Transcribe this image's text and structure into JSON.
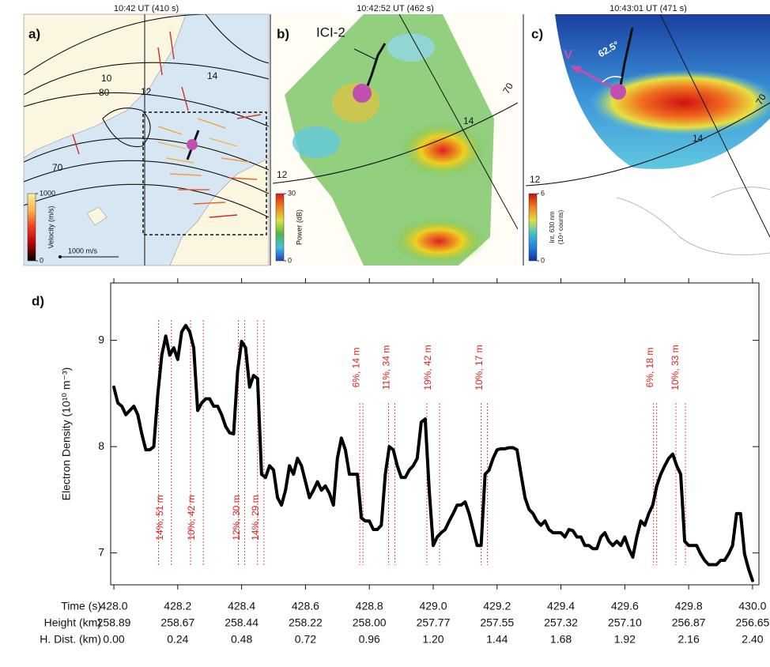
{
  "chart_data": [
    {
      "type": "map",
      "label": "a)",
      "title": "10:42 UT (410 s)",
      "contour_labels": [
        "10",
        "12",
        "14",
        "80",
        "70"
      ],
      "scale_label": "1000 m/s",
      "colorbar": {
        "label": "Velocity (m/s)",
        "clim": [
          0,
          1000
        ],
        "ticks": [
          0,
          1000
        ],
        "colors": [
          "#000000",
          "#b30000",
          "#f03b20",
          "#feb24c",
          "#ffeda0"
        ]
      }
    },
    {
      "type": "map",
      "label": "b)",
      "title": "10:42:52 UT (462 s)",
      "trajectory_label": "ICI-2",
      "contour_labels": [
        "12",
        "14",
        "70"
      ],
      "colorbar": {
        "label": "Power (dB)",
        "clim": [
          0,
          30
        ],
        "ticks": [
          0,
          30
        ],
        "colors": [
          "#2040c0",
          "#40c0e0",
          "#50b848",
          "#e0e040",
          "#f08020",
          "#d02020"
        ]
      }
    },
    {
      "type": "map",
      "label": "c)",
      "title": "10:43:01 UT (471 s)",
      "velocity_label": "V",
      "angle_label": "62.5°",
      "contour_labels": [
        "12",
        "14",
        "70"
      ],
      "colorbar": {
        "label": [
          "Int. 630 nm",
          "(10⁴ counts)"
        ],
        "clim": [
          0,
          6
        ],
        "ticks": [
          0,
          6
        ],
        "colors": [
          "#1030a0",
          "#2080e0",
          "#40c0d0",
          "#e0e040",
          "#f08020",
          "#c01010"
        ]
      }
    },
    {
      "type": "line",
      "label": "d)",
      "ylabel": "Electron Density (10¹⁰ m⁻³)",
      "xlabel": "Time (s)",
      "xlim": [
        427.99,
        430.02
      ],
      "ylim": [
        6.7,
        9.54
      ],
      "xticks": [
        {
          "value": 428,
          "label": "428.0"
        },
        428.2,
        428.4,
        428.6,
        428.8,
        {
          "value": 429,
          "label": "429.0"
        },
        429.2,
        429.4,
        429.6,
        429.8,
        {
          "value": 430,
          "label": "430.0"
        }
      ],
      "yticks": [
        7,
        8,
        9
      ],
      "x_rows": [
        {
          "label": "Height (km)",
          "ticks": [
            258.89,
            258.67,
            258.44,
            258.22,
            {
              "value": 258,
              "label": "258.00"
            },
            257.77,
            257.55,
            257.32,
            {
              "value": 257.1,
              "label": "257.10"
            },
            256.87,
            256.65
          ]
        },
        {
          "label": "H. Dist. (km)",
          "ticks": [
            {
              "value": 0,
              "label": "0.00"
            },
            0.24,
            0.48,
            0.72,
            0.96,
            {
              "value": 1.2,
              "label": "1.20"
            },
            1.44,
            1.68,
            1.92,
            2.16,
            {
              "value": 2.4,
              "label": "2.40"
            }
          ]
        }
      ],
      "x": [
        428,
        428.0125,
        428.025,
        428.0375,
        428.05,
        428.0625,
        428.075,
        428.0875,
        428.1,
        428.1125,
        428.125,
        428.1375,
        428.15,
        428.1625,
        428.175,
        428.1875,
        428.2,
        428.2125,
        428.225,
        428.2375,
        428.25,
        428.2625,
        428.275,
        428.2875,
        428.3,
        428.3125,
        428.325,
        428.3375,
        428.35,
        428.3625,
        428.375,
        428.3875,
        428.4,
        428.4125,
        428.425,
        428.4375,
        428.45,
        428.4625,
        428.475,
        428.4875,
        428.5,
        428.5125,
        428.525,
        428.5375,
        428.55,
        428.5625,
        428.575,
        428.5875,
        428.6,
        428.6125,
        428.625,
        428.6375,
        428.65,
        428.6625,
        428.675,
        428.6875,
        428.7,
        428.7125,
        428.725,
        428.7375,
        428.75,
        428.7625,
        428.775,
        428.7875,
        428.8,
        428.8125,
        428.825,
        428.8375,
        428.85,
        428.8625,
        428.875,
        428.8875,
        428.9,
        428.9125,
        428.925,
        428.9375,
        428.95,
        428.9625,
        428.975,
        428.9875,
        429,
        429.0125,
        429.025,
        429.0375,
        429.05,
        429.0625,
        429.075,
        429.0875,
        429.1,
        429.1125,
        429.125,
        429.1375,
        429.15,
        429.1625,
        429.175,
        429.1875,
        429.2,
        429.2125,
        429.225,
        429.2375,
        429.25,
        429.2625,
        429.275,
        429.2875,
        429.3,
        429.3125,
        429.325,
        429.3375,
        429.35,
        429.3625,
        429.375,
        429.3875,
        429.4,
        429.4125,
        429.425,
        429.4375,
        429.45,
        429.4625,
        429.475,
        429.4875,
        429.5,
        429.5125,
        429.525,
        429.5375,
        429.55,
        429.5625,
        429.575,
        429.5875,
        429.6,
        429.6125,
        429.625,
        429.6375,
        429.65,
        429.6625,
        429.675,
        429.6875,
        429.7,
        429.7125,
        429.725,
        429.7375,
        429.75,
        429.7625,
        429.775,
        429.7875,
        429.8,
        429.8125,
        429.825,
        429.8375,
        429.85,
        429.8625,
        429.875,
        429.8875,
        429.9,
        429.9125,
        429.925,
        429.9375,
        429.95,
        429.9625,
        429.975,
        429.9875,
        430
      ],
      "series": [
        {
          "color": "#000000",
          "values": [
            8.56,
            8.41,
            8.38,
            8.3,
            8.34,
            8.38,
            8.3,
            8.12,
            7.97,
            7.97,
            8.0,
            8.49,
            8.86,
            9.04,
            8.86,
            8.93,
            8.82,
            9.08,
            9.14,
            9.08,
            8.93,
            8.34,
            8.41,
            8.45,
            8.45,
            8.38,
            8.38,
            8.3,
            8.19,
            8.13,
            8.12,
            8.71,
            8.99,
            8.93,
            8.56,
            8.67,
            8.64,
            7.74,
            7.71,
            7.82,
            7.78,
            7.52,
            7.45,
            7.59,
            7.82,
            7.74,
            7.89,
            7.82,
            7.67,
            7.52,
            7.59,
            7.67,
            7.59,
            7.63,
            7.56,
            7.45,
            7.89,
            8.08,
            7.97,
            7.74,
            7.74,
            7.74,
            7.33,
            7.3,
            7.3,
            7.22,
            7.22,
            7.26,
            7.74,
            8.0,
            7.97,
            7.82,
            7.71,
            7.71,
            7.78,
            7.82,
            7.89,
            8.23,
            8.26,
            7.59,
            7.07,
            7.15,
            7.19,
            7.22,
            7.3,
            7.37,
            7.45,
            7.45,
            7.48,
            7.37,
            7.22,
            7.07,
            7.07,
            7.74,
            7.78,
            7.89,
            7.97,
            7.98,
            7.98,
            7.99,
            7.99,
            7.97,
            7.74,
            7.52,
            7.41,
            7.37,
            7.3,
            7.26,
            7.3,
            7.22,
            7.19,
            7.19,
            7.19,
            7.15,
            7.22,
            7.21,
            7.15,
            7.15,
            7.07,
            7.07,
            7.04,
            7.04,
            7.15,
            7.19,
            7.11,
            7.07,
            7.11,
            7.07,
            7.15,
            7.04,
            6.96,
            7.15,
            7.3,
            7.26,
            7.37,
            7.45,
            7.63,
            7.74,
            7.82,
            7.89,
            7.93,
            7.82,
            7.74,
            7.11,
            7.07,
            7.07,
            7.07,
            6.99,
            6.93,
            6.89,
            6.89,
            6.89,
            6.93,
            6.93,
            6.99,
            7.07,
            7.37,
            7.37,
            6.99,
            6.85,
            6.74
          ]
        }
      ],
      "annotation_color": "#e02020",
      "annotations": [
        {
          "label": "14%, 51 m",
          "x": [
            428.14,
            428.18
          ],
          "side": "below"
        },
        {
          "label": "10%, 42 m",
          "x": [
            428.24,
            428.28
          ],
          "side": "below"
        },
        {
          "label": "12%, 30 m",
          "x": [
            428.39,
            428.41
          ],
          "side": "below"
        },
        {
          "label": "14%, 29 m",
          "x": [
            428.45,
            428.47
          ],
          "side": "below"
        },
        {
          "label": "6%, 14 m",
          "x": [
            428.77,
            428.78
          ],
          "side": "above"
        },
        {
          "label": "11%, 34 m",
          "x": [
            428.86,
            428.88
          ],
          "side": "above"
        },
        {
          "label": "19%, 42 m",
          "x": [
            428.98,
            429.02
          ],
          "side": "above"
        },
        {
          "label": "10%, 17 m",
          "x": [
            429.15,
            429.17
          ],
          "side": "above"
        },
        {
          "label": "6%, 18 m",
          "x": [
            429.69,
            429.7
          ],
          "side": "above"
        },
        {
          "label": "10%, 33 m",
          "x": [
            429.76,
            429.79
          ],
          "side": "above"
        }
      ]
    }
  ]
}
